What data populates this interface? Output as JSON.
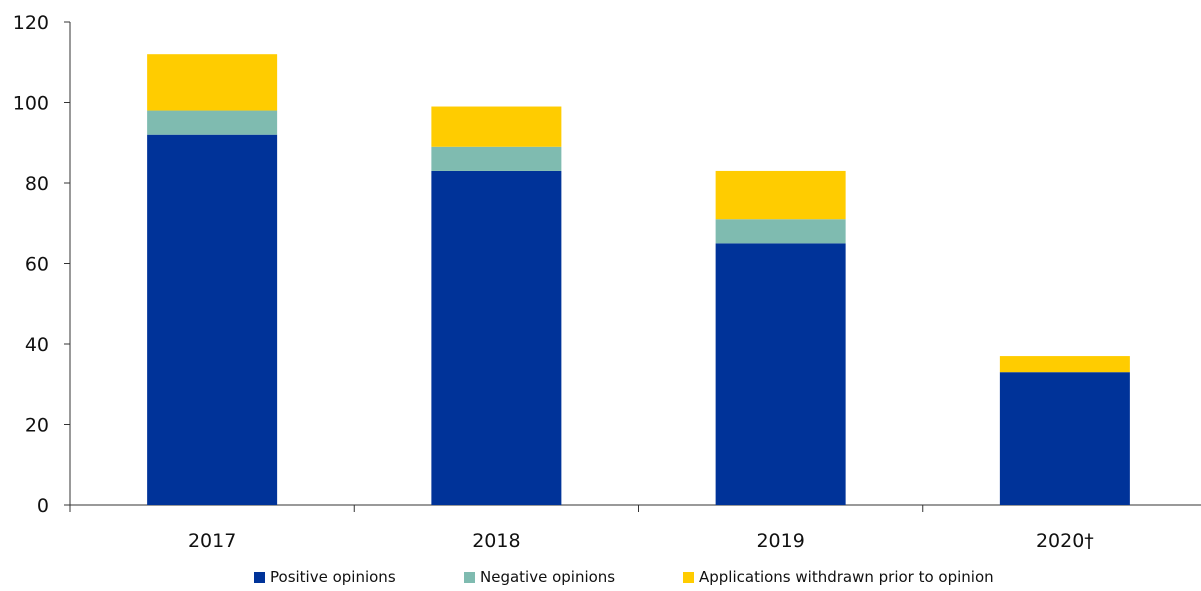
{
  "chart_data": {
    "type": "bar",
    "stacked": true,
    "categories": [
      "2017",
      "2018",
      "2019",
      "2020†"
    ],
    "series": [
      {
        "name": "Positive opinions",
        "color": "#003399",
        "values": [
          92,
          83,
          65,
          33
        ]
      },
      {
        "name": "Negative opinions",
        "color": "#7fbbb0",
        "values": [
          6,
          6,
          6,
          0
        ]
      },
      {
        "name": "Applications withdrawn prior to opinion",
        "color": "#ffcc00",
        "values": [
          14,
          10,
          12,
          4
        ]
      }
    ],
    "y_ticks": [
      "0",
      "20",
      "40",
      "60",
      "80",
      "100",
      "120"
    ],
    "ylim": [
      0,
      120
    ],
    "title": "",
    "xlabel": "",
    "ylabel": "",
    "grid": false,
    "legend_position": "bottom-center"
  }
}
